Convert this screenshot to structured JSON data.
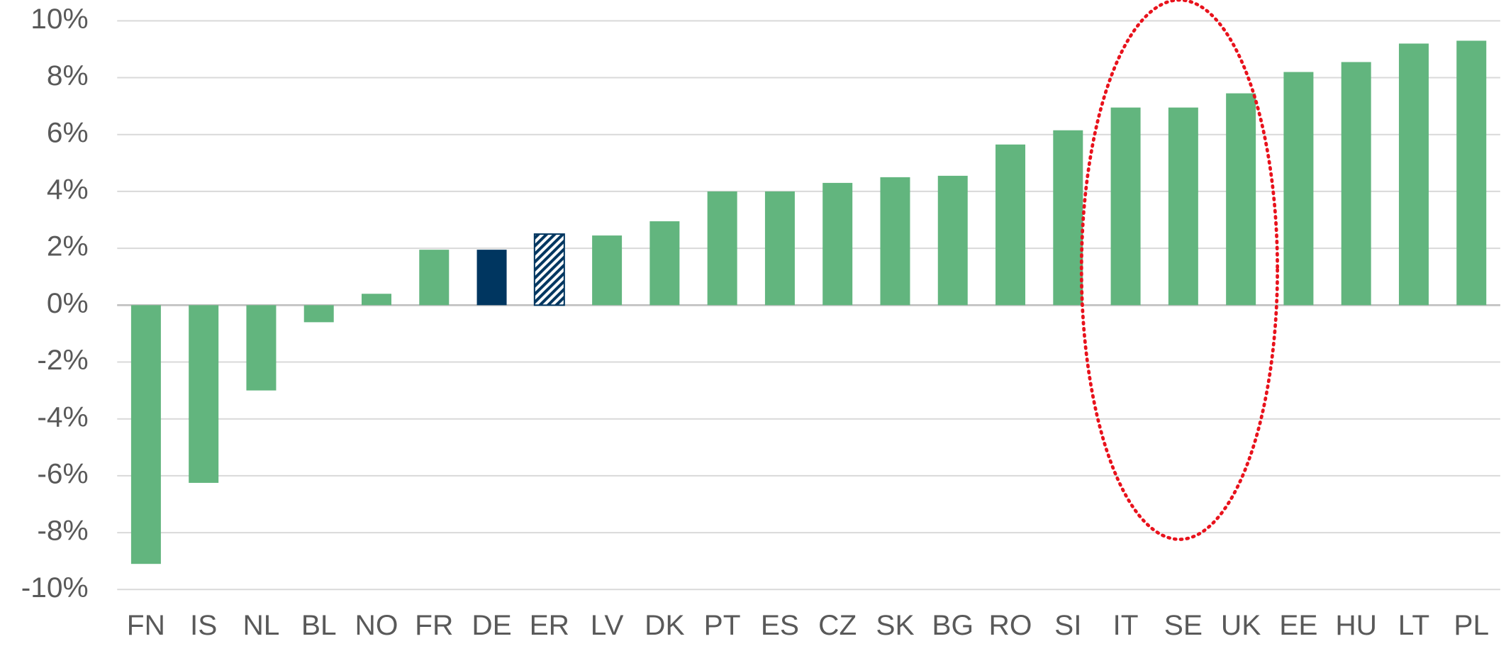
{
  "chart_data": {
    "type": "bar",
    "categories": [
      "FN",
      "IS",
      "NL",
      "BL",
      "NO",
      "FR",
      "DE",
      "ER",
      "LV",
      "DK",
      "PT",
      "ES",
      "CZ",
      "SK",
      "BG",
      "RO",
      "SI",
      "IT",
      "SE",
      "UK",
      "EE",
      "HU",
      "LT",
      "PL"
    ],
    "values": [
      -9.1,
      -6.25,
      -3.0,
      -0.6,
      0.4,
      1.95,
      1.95,
      2.5,
      2.45,
      2.95,
      4.0,
      4.0,
      4.3,
      4.5,
      4.55,
      5.65,
      6.15,
      6.95,
      6.95,
      7.45,
      8.2,
      8.55,
      9.2,
      9.3
    ],
    "colors": [
      "#62b57e",
      "#62b57e",
      "#62b57e",
      "#62b57e",
      "#62b57e",
      "#62b57e",
      "#003660",
      "#003660",
      "#62b57e",
      "#62b57e",
      "#62b57e",
      "#62b57e",
      "#62b57e",
      "#62b57e",
      "#62b57e",
      "#62b57e",
      "#62b57e",
      "#62b57e",
      "#62b57e",
      "#62b57e",
      "#62b57e",
      "#62b57e",
      "#62b57e",
      "#62b57e"
    ],
    "hatched": [
      false,
      false,
      false,
      false,
      false,
      false,
      false,
      true,
      false,
      false,
      false,
      false,
      false,
      false,
      false,
      false,
      false,
      false,
      false,
      false,
      false,
      false,
      false,
      false
    ],
    "ylim": [
      -10,
      10
    ],
    "yticks": [
      {
        "value": -10,
        "label": "-10%"
      },
      {
        "value": -8,
        "label": "-8%"
      },
      {
        "value": -6,
        "label": "-6%"
      },
      {
        "value": -4,
        "label": "-4%"
      },
      {
        "value": -2,
        "label": "-2%"
      },
      {
        "value": 0,
        "label": "0%"
      },
      {
        "value": 2,
        "label": "2%"
      },
      {
        "value": 4,
        "label": "4%"
      },
      {
        "value": 6,
        "label": "6%"
      },
      {
        "value": 8,
        "label": "8%"
      },
      {
        "value": 10,
        "label": "10%"
      }
    ],
    "grid": true
  }
}
